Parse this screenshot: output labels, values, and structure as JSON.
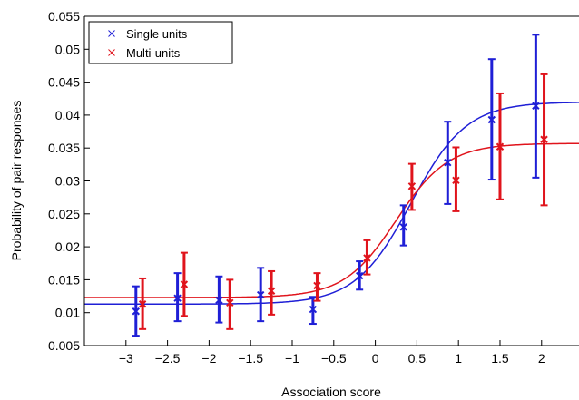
{
  "chart_data": {
    "type": "scatter",
    "title": "",
    "xlabel": "Association score",
    "ylabel": "Probability of pair responses",
    "xlim": [
      -3.5,
      2.45
    ],
    "ylim": [
      0.005,
      0.055
    ],
    "xticks": [
      -3,
      -2.5,
      -2,
      -1.5,
      -1,
      -0.5,
      0,
      0.5,
      1,
      1.5,
      2
    ],
    "xtick_labels": [
      "−3",
      "−2.5",
      "−2",
      "−1.5",
      "−1",
      "−0.5",
      "0",
      "0.5",
      "1",
      "1.5",
      "2"
    ],
    "yticks": [
      0.005,
      0.01,
      0.015,
      0.02,
      0.025,
      0.03,
      0.035,
      0.04,
      0.045,
      0.05,
      0.055
    ],
    "ytick_labels": [
      "0.005",
      "0.01",
      "0.015",
      "0.02",
      "0.025",
      "0.03",
      "0.035",
      "0.04",
      "0.045",
      "0.05",
      "0.055"
    ],
    "grid": false,
    "legend_position": "top-left",
    "series": [
      {
        "name": "Single units",
        "color": "#1f1fd6",
        "marker": "x",
        "x": [
          -2.88,
          -2.38,
          -1.88,
          -1.38,
          -0.75,
          -0.19,
          0.34,
          0.87,
          1.4,
          1.93
        ],
        "y": [
          0.0102,
          0.0122,
          0.0119,
          0.0127,
          0.0105,
          0.0156,
          0.023,
          0.0328,
          0.0393,
          0.0414
        ],
        "err_low": [
          0.0065,
          0.0087,
          0.0085,
          0.0087,
          0.0083,
          0.0135,
          0.0202,
          0.0265,
          0.0302,
          0.0305
        ],
        "err_high": [
          0.014,
          0.016,
          0.0155,
          0.0168,
          0.0124,
          0.0178,
          0.0263,
          0.039,
          0.0485,
          0.0522
        ],
        "fit": {
          "bottom": 0.0113,
          "top": 0.042,
          "midpoint": 0.43,
          "slope": 3.0
        }
      },
      {
        "name": "Multi-units",
        "color": "#e0141c",
        "marker": "x",
        "x": [
          -2.8,
          -2.3,
          -1.75,
          -1.25,
          -0.7,
          -0.1,
          0.44,
          0.97,
          1.5,
          2.03
        ],
        "y": [
          0.0113,
          0.0143,
          0.0115,
          0.0133,
          0.0141,
          0.0183,
          0.0292,
          0.0301,
          0.0352,
          0.0363
        ],
        "err_low": [
          0.0075,
          0.0095,
          0.0075,
          0.0097,
          0.0118,
          0.0158,
          0.0256,
          0.0254,
          0.0272,
          0.0263
        ],
        "err_high": [
          0.0152,
          0.0191,
          0.015,
          0.0163,
          0.016,
          0.021,
          0.0326,
          0.0351,
          0.0433,
          0.0462
        ],
        "fit": {
          "bottom": 0.0123,
          "top": 0.0357,
          "midpoint": 0.25,
          "slope": 3.2
        }
      }
    ]
  }
}
